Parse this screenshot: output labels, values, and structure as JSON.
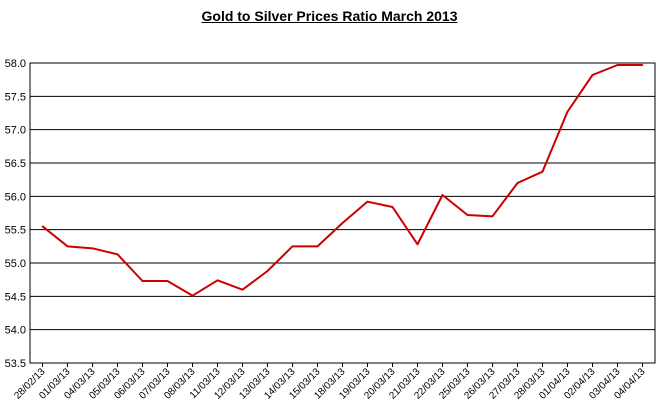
{
  "chart_data": {
    "type": "line",
    "title": "Gold to Silver Prices Ratio March  2013",
    "xlabel": "",
    "ylabel": "",
    "ylim": [
      53.5,
      58.0
    ],
    "yticks": [
      "58.0",
      "57.5",
      "57.0",
      "56.5",
      "56.0",
      "55.5",
      "55.0",
      "54.5",
      "54.0",
      "53.5"
    ],
    "grid": true,
    "legend": "none",
    "categories": [
      "28/02/13",
      "01/03/13",
      "04/03/13",
      "05/03/13",
      "06/03/13",
      "07/03/13",
      "08/03/13",
      "11/03/13",
      "12/03/13",
      "13/03/13",
      "14/03/13",
      "15/03/13",
      "18/03/13",
      "19/03/13",
      "20/03/13",
      "21/03/13",
      "22/03/13",
      "25/03/13",
      "26/03/13",
      "27/03/13",
      "28/03/13",
      "01/04/13",
      "02/04/13",
      "03/04/13",
      "04/04/13"
    ],
    "series": [
      {
        "name": "",
        "color": "#cc0000",
        "values": [
          55.55,
          55.25,
          55.22,
          55.13,
          54.73,
          54.73,
          54.51,
          54.74,
          54.6,
          54.88,
          55.25,
          55.25,
          55.6,
          55.92,
          55.84,
          55.28,
          56.02,
          55.72,
          55.7,
          56.2,
          56.37,
          57.27,
          57.82,
          57.97,
          57.97
        ]
      }
    ]
  }
}
